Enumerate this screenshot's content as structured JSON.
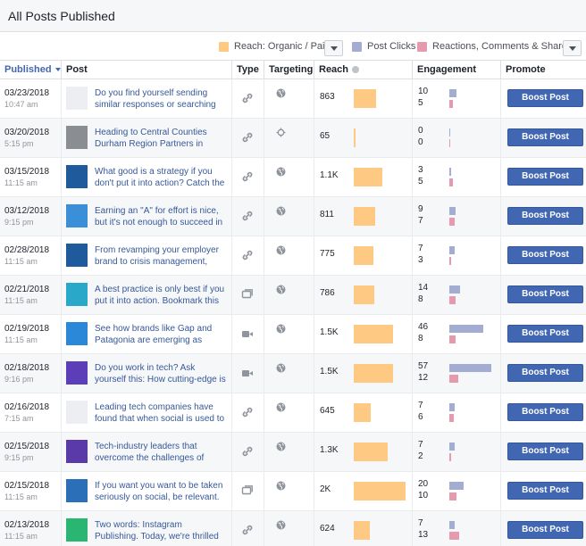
{
  "title": "All Posts Published",
  "legend": {
    "reach": "Reach: Organic / Paid",
    "clicks": "Post Clicks",
    "reactions": "Reactions, Comments & Shares"
  },
  "colors": {
    "reach": "#fdc983",
    "clicks": "#a3acd1",
    "reactions": "#e59aae",
    "boost": "#4267b2"
  },
  "columns": {
    "published": "Published",
    "post": "Post",
    "type": "Type",
    "targeting": "Targeting",
    "reach": "Reach",
    "engagement": "Engagement",
    "promote": "Promote"
  },
  "boost_label": "Boost Post",
  "rows": [
    {
      "date": "03/23/2018",
      "time": "10:47 am",
      "text": "Do you find yourself sending similar responses or searching for answ",
      "type": "link-icon",
      "targeting": "globe-icon",
      "reach_label": "863",
      "reach": 863,
      "clicks": 10,
      "reactions": 5,
      "thumb": "#eceef1"
    },
    {
      "date": "03/20/2018",
      "time": "5:15 pm",
      "text": "Heading to Central Counties Durham Region Partners in Tourism Sy",
      "type": "link-icon",
      "targeting": "crosshair-icon",
      "reach_label": "65",
      "reach": 65,
      "clicks": 0,
      "reactions": 0,
      "thumb": "#8a8d91"
    },
    {
      "date": "03/15/2018",
      "time": "11:15 am",
      "text": "What good is a strategy if you don't put it into action? Catch the full",
      "type": "link-icon",
      "targeting": "globe-icon",
      "reach_label": "1.1K",
      "reach": 1100,
      "clicks": 3,
      "reactions": 5,
      "thumb": "#1e5a9c"
    },
    {
      "date": "03/12/2018",
      "time": "9:15 pm",
      "text": "Earning an \"A\" for effort is nice, but it's not enough to succeed in the hi",
      "type": "link-icon",
      "targeting": "globe-icon",
      "reach_label": "811",
      "reach": 811,
      "clicks": 9,
      "reactions": 7,
      "thumb": "#3b8fd9"
    },
    {
      "date": "02/28/2018",
      "time": "11:15 am",
      "text": "From revamping your employer brand to crisis management, Sprout",
      "type": "link-icon",
      "targeting": "globe-icon",
      "reach_label": "775",
      "reach": 775,
      "clicks": 7,
      "reactions": 3,
      "thumb": "#1e5a9c"
    },
    {
      "date": "02/21/2018",
      "time": "11:15 am",
      "text": "A best practice is only best if you put it into action. Bookmark this play",
      "type": "album-icon",
      "targeting": "globe-icon",
      "reach_label": "786",
      "reach": 786,
      "clicks": 14,
      "reactions": 8,
      "thumb": "#2aa8c9"
    },
    {
      "date": "02/19/2018",
      "time": "11:15 am",
      "text": "See how brands like Gap and Patagonia are emerging as examples o",
      "type": "video-icon",
      "targeting": "globe-icon",
      "reach_label": "1.5K",
      "reach": 1500,
      "clicks": 46,
      "reactions": 8,
      "thumb": "#2b87d8"
    },
    {
      "date": "02/18/2018",
      "time": "9:16 pm",
      "text": "Do you work in tech? Ask yourself this: How cutting-edge is your tech",
      "type": "video-icon",
      "targeting": "globe-icon",
      "reach_label": "1.5K",
      "reach": 1500,
      "clicks": 57,
      "reactions": 12,
      "thumb": "#5c3fb8"
    },
    {
      "date": "02/16/2018",
      "time": "7:15 am",
      "text": "Leading tech companies have found that when social is used to listen",
      "type": "link-icon",
      "targeting": "globe-icon",
      "reach_label": "645",
      "reach": 645,
      "clicks": 7,
      "reactions": 6,
      "thumb": "#eceef1"
    },
    {
      "date": "02/15/2018",
      "time": "9:15 pm",
      "text": "Tech-industry leaders that overcome the challenges of integrating so",
      "type": "link-icon",
      "targeting": "globe-icon",
      "reach_label": "1.3K",
      "reach": 1300,
      "clicks": 7,
      "reactions": 2,
      "thumb": "#5a3aa8"
    },
    {
      "date": "02/15/2018",
      "time": "11:15 am",
      "text": "If you want you want to be taken seriously on social, be relevant. Bra",
      "type": "album-icon",
      "targeting": "globe-icon",
      "reach_label": "2K",
      "reach": 2000,
      "clicks": 20,
      "reactions": 10,
      "thumb": "#2a6fb8"
    },
    {
      "date": "02/13/2018",
      "time": "11:15 am",
      "text": "Two words: Instagram Publishing. Today, we're thrilled to announce t",
      "type": "link-icon",
      "targeting": "globe-icon",
      "reach_label": "624",
      "reach": 624,
      "clicks": 7,
      "reactions": 13,
      "thumb": "#2bb573"
    }
  ]
}
